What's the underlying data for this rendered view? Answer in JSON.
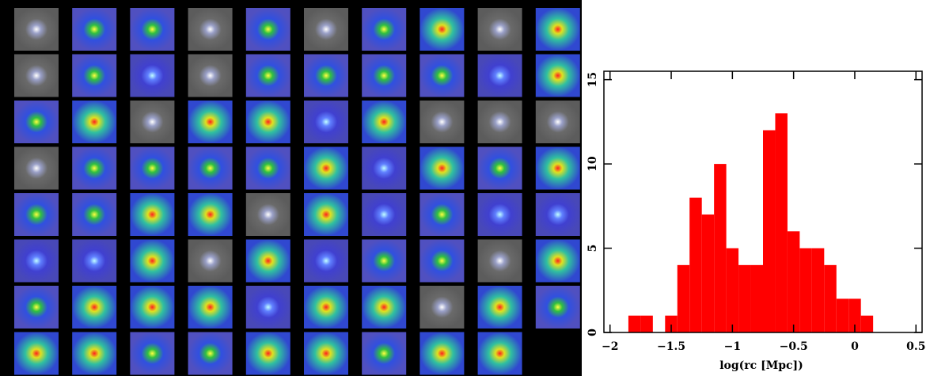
{
  "chart_data": {
    "type": "histogram",
    "xlabel": "log(rc [Mpc])",
    "bins": [
      -1.85,
      -1.75,
      -1.65,
      -1.55,
      -1.45,
      -1.35,
      -1.25,
      -1.15,
      -1.05,
      -0.95,
      -0.85,
      -0.75,
      -0.65,
      -0.55,
      -0.45,
      -0.35,
      -0.25,
      -0.15,
      -0.05,
      0.05,
      0.15
    ],
    "values": [
      1,
      1,
      0,
      1,
      4,
      8,
      7,
      10,
      5,
      4,
      4,
      12,
      13,
      6,
      5,
      5,
      4,
      2,
      2,
      1
    ],
    "color": "#ff0000",
    "xlim": [
      -2.05,
      0.55
    ],
    "ylim": [
      0,
      15.5
    ],
    "xticks": [
      {
        "value": -2,
        "label": "−2"
      },
      {
        "value": -1.5,
        "label": "−1.5"
      },
      {
        "value": -1,
        "label": "−1"
      },
      {
        "value": -0.5,
        "label": "−0.5"
      },
      0,
      0.5
    ],
    "yticks": [
      0,
      5,
      10,
      15
    ]
  }
}
